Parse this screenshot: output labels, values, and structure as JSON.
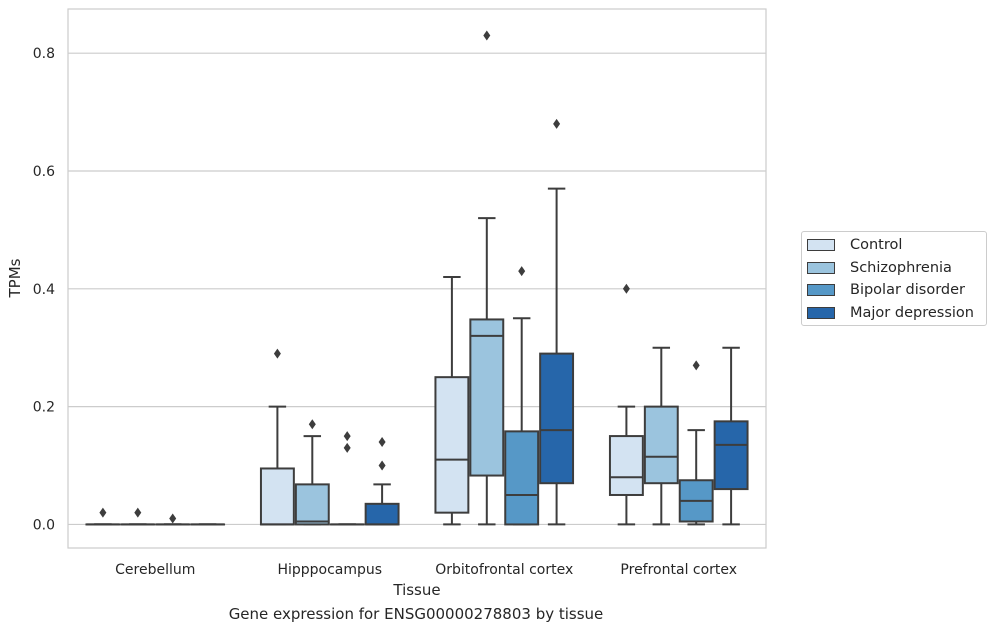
{
  "caption": "Gene expression for ENSG00000278803 by tissue",
  "chart_data": {
    "type": "box",
    "xlabel": "Tissue",
    "ylabel": "TPMs",
    "ylim": [
      -0.04,
      0.875
    ],
    "yticks": [
      0.0,
      0.2,
      0.4,
      0.6,
      0.8
    ],
    "ytick_labels": [
      "0.0",
      "0.2",
      "0.4",
      "0.6",
      "0.8"
    ],
    "grid": "horizontal",
    "legend_position": "right",
    "categories": [
      "Cerebellum",
      "Hipppocampus",
      "Orbitofrontal cortex",
      "Prefrontal cortex"
    ],
    "series": [
      {
        "name": "Control",
        "color": "#d3e3f2",
        "boxes": [
          {
            "category": "Cerebellum",
            "whislo": 0,
            "q1": 0,
            "med": 0,
            "q3": 0,
            "whishi": 0,
            "fliers": [
              0.02
            ]
          },
          {
            "category": "Hipppocampus",
            "whislo": 0,
            "q1": 0,
            "med": 0,
            "q3": 0.095,
            "whishi": 0.2,
            "fliers": [
              0.29
            ]
          },
          {
            "category": "Orbitofrontal cortex",
            "whislo": 0,
            "q1": 0.02,
            "med": 0.11,
            "q3": 0.25,
            "whishi": 0.42,
            "fliers": []
          },
          {
            "category": "Prefrontal cortex",
            "whislo": 0,
            "q1": 0.05,
            "med": 0.08,
            "q3": 0.15,
            "whishi": 0.2,
            "fliers": [
              0.4
            ]
          }
        ]
      },
      {
        "name": "Schizophrenia",
        "color": "#9bc4de",
        "boxes": [
          {
            "category": "Cerebellum",
            "whislo": 0,
            "q1": 0,
            "med": 0,
            "q3": 0,
            "whishi": 0,
            "fliers": [
              0.02
            ]
          },
          {
            "category": "Hipppocampus",
            "whislo": 0,
            "q1": 0,
            "med": 0.005,
            "q3": 0.068,
            "whishi": 0.15,
            "fliers": [
              0.17
            ]
          },
          {
            "category": "Orbitofrontal cortex",
            "whislo": 0,
            "q1": 0.083,
            "med": 0.32,
            "q3": 0.348,
            "whishi": 0.52,
            "fliers": [
              0.83
            ]
          },
          {
            "category": "Prefrontal cortex",
            "whislo": 0,
            "q1": 0.07,
            "med": 0.115,
            "q3": 0.2,
            "whishi": 0.3,
            "fliers": []
          }
        ]
      },
      {
        "name": "Bipolar disorder",
        "color": "#5698c7",
        "boxes": [
          {
            "category": "Cerebellum",
            "whislo": 0,
            "q1": 0,
            "med": 0,
            "q3": 0,
            "whishi": 0,
            "fliers": [
              0.01
            ]
          },
          {
            "category": "Hipppocampus",
            "whislo": 0,
            "q1": 0,
            "med": 0,
            "q3": 0,
            "whishi": 0,
            "fliers": [
              0.15,
              0.13
            ]
          },
          {
            "category": "Orbitofrontal cortex",
            "whislo": 0,
            "q1": 0,
            "med": 0.05,
            "q3": 0.158,
            "whishi": 0.35,
            "fliers": [
              0.43
            ]
          },
          {
            "category": "Prefrontal cortex",
            "whislo": 0,
            "q1": 0.005,
            "med": 0.04,
            "q3": 0.075,
            "whishi": 0.16,
            "fliers": [
              0.27
            ]
          }
        ]
      },
      {
        "name": "Major depression",
        "color": "#2666aa",
        "boxes": [
          {
            "category": "Cerebellum",
            "whislo": 0,
            "q1": 0,
            "med": 0,
            "q3": 0,
            "whishi": 0,
            "fliers": []
          },
          {
            "category": "Hipppocampus",
            "whislo": 0,
            "q1": 0,
            "med": 0,
            "q3": 0.035,
            "whishi": 0.068,
            "fliers": [
              0.14,
              0.1
            ]
          },
          {
            "category": "Orbitofrontal cortex",
            "whislo": 0,
            "q1": 0.07,
            "med": 0.16,
            "q3": 0.29,
            "whishi": 0.57,
            "fliers": [
              0.68
            ]
          },
          {
            "category": "Prefrontal cortex",
            "whislo": 0,
            "q1": 0.06,
            "med": 0.135,
            "q3": 0.175,
            "whishi": 0.3,
            "fliers": []
          }
        ]
      }
    ]
  }
}
